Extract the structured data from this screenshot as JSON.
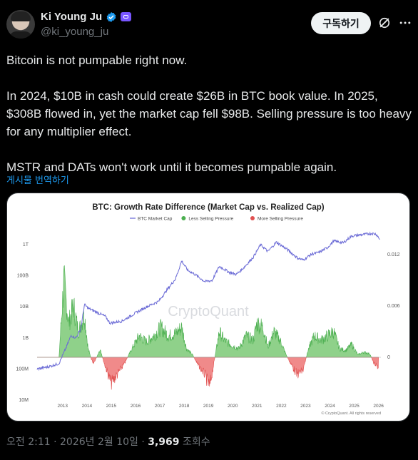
{
  "author": {
    "display_name": "Ki Young Ju",
    "handle": "@ki_young_ju"
  },
  "header": {
    "subscribe_label": "구독하기"
  },
  "icons": {
    "verified": "verified-badge-icon",
    "affiliate": "affiliate-badge-icon",
    "grok": "grok-icon",
    "more": "more-icon"
  },
  "tweet": {
    "line1": "Bitcoin is not pumpable right now.",
    "line2": "In 2024, $10B in cash could create $26B in BTC book value. In 2025, $308B flowed in, yet the market cap fell $98B. Selling pressure is too heavy for any multiplier effect.",
    "line3": "MSTR and DATs won't work until it becomes pumpable again.",
    "translate_label": "게시물 번역하기"
  },
  "chart_data": {
    "type": "area",
    "title": "BTC: Growth Rate Difference (Market Cap vs. Realized Cap)",
    "legend": [
      "BTC Market Cap",
      "Less Selling Pressure",
      "More Selling Pressure"
    ],
    "legend_placement": "top-center",
    "watermark": "CryptoQuant",
    "source": "© CryptoQuant. All rights reserved",
    "left_axis": {
      "scale": "log",
      "ticks": [
        "10M",
        "100M",
        "1B",
        "10B",
        "100B",
        "1T"
      ]
    },
    "right_axis": {
      "ticks": [
        "0",
        "0.006",
        "0.012"
      ]
    },
    "x_ticks": [
      "2013",
      "2014",
      "2015",
      "2016",
      "2017",
      "2018",
      "2019",
      "2020",
      "2021",
      "2022",
      "2023",
      "2024",
      "2025",
      "2026"
    ],
    "market_cap_usd": [
      [
        2012.0,
        0.1
      ],
      [
        2012.5,
        0.12
      ],
      [
        2012.9,
        0.15
      ],
      [
        2013.2,
        0.5
      ],
      [
        2013.4,
        1.2
      ],
      [
        2013.6,
        1.0
      ],
      [
        2013.8,
        2.0
      ],
      [
        2013.95,
        12
      ],
      [
        2014.1,
        9
      ],
      [
        2014.4,
        7
      ],
      [
        2014.8,
        5
      ],
      [
        2015.0,
        3
      ],
      [
        2015.5,
        3.5
      ],
      [
        2016.0,
        6
      ],
      [
        2016.5,
        10
      ],
      [
        2017.0,
        15
      ],
      [
        2017.4,
        40
      ],
      [
        2017.7,
        80
      ],
      [
        2017.95,
        300
      ],
      [
        2018.2,
        150
      ],
      [
        2018.5,
        110
      ],
      [
        2018.9,
        65
      ],
      [
        2019.2,
        70
      ],
      [
        2019.5,
        200
      ],
      [
        2019.9,
        130
      ],
      [
        2020.2,
        110
      ],
      [
        2020.5,
        180
      ],
      [
        2020.9,
        400
      ],
      [
        2021.2,
        1000
      ],
      [
        2021.5,
        600
      ],
      [
        2021.85,
        1200
      ],
      [
        2022.3,
        700
      ],
      [
        2022.7,
        380
      ],
      [
        2022.95,
        320
      ],
      [
        2023.3,
        500
      ],
      [
        2023.6,
        560
      ],
      [
        2023.95,
        800
      ],
      [
        2024.2,
        1300
      ],
      [
        2024.6,
        1150
      ],
      [
        2024.95,
        1900
      ],
      [
        2025.4,
        2100
      ],
      [
        2025.75,
        2300
      ],
      [
        2025.95,
        2200
      ],
      [
        2026.1,
        1500
      ]
    ],
    "growth_rate_difference": [
      [
        2012.0,
        0.0
      ],
      [
        2012.5,
        0.0
      ],
      [
        2012.9,
        0.0
      ],
      [
        2013.1,
        0.009
      ],
      [
        2013.3,
        0.004
      ],
      [
        2013.5,
        0.006
      ],
      [
        2013.7,
        0.003
      ],
      [
        2013.95,
        0.005
      ],
      [
        2014.1,
        0.001
      ],
      [
        2014.3,
        -0.0008
      ],
      [
        2014.6,
        0.0008
      ],
      [
        2014.8,
        -0.001
      ],
      [
        2015.05,
        -0.003
      ],
      [
        2015.3,
        -0.002
      ],
      [
        2015.6,
        -0.0007
      ],
      [
        2015.9,
        0.001
      ],
      [
        2016.2,
        0.0025
      ],
      [
        2016.5,
        0.0018
      ],
      [
        2016.8,
        0.0025
      ],
      [
        2017.1,
        0.0035
      ],
      [
        2017.4,
        0.0025
      ],
      [
        2017.7,
        0.0028
      ],
      [
        2017.95,
        0.0035
      ],
      [
        2018.15,
        0.001
      ],
      [
        2018.4,
        0.0003
      ],
      [
        2018.6,
        -0.0008
      ],
      [
        2018.9,
        -0.002
      ],
      [
        2019.1,
        -0.0035
      ],
      [
        2019.3,
        -0.0003
      ],
      [
        2019.5,
        0.003
      ],
      [
        2019.7,
        0.002
      ],
      [
        2019.95,
        0.0015
      ],
      [
        2020.3,
        0.001
      ],
      [
        2020.6,
        0.0025
      ],
      [
        2020.9,
        0.002
      ],
      [
        2021.05,
        0.004
      ],
      [
        2021.3,
        0.0035
      ],
      [
        2021.5,
        0.0012
      ],
      [
        2021.75,
        0.003
      ],
      [
        2022.0,
        0.002
      ],
      [
        2022.25,
        0.0003
      ],
      [
        2022.45,
        -0.0008
      ],
      [
        2022.7,
        -0.002
      ],
      [
        2022.95,
        -0.0015
      ],
      [
        2023.15,
        0.0008
      ],
      [
        2023.4,
        0.0025
      ],
      [
        2023.7,
        0.002
      ],
      [
        2023.95,
        0.0025
      ],
      [
        2024.2,
        0.003
      ],
      [
        2024.45,
        0.001
      ],
      [
        2024.7,
        0.0008
      ],
      [
        2024.95,
        0.0015
      ],
      [
        2025.2,
        0.0003
      ],
      [
        2025.45,
        0.0006
      ],
      [
        2025.7,
        0.0004
      ],
      [
        2025.85,
        -0.0006
      ],
      [
        2026.05,
        -0.0012
      ]
    ]
  },
  "meta": {
    "time_date": "오전 2:11 · 2026년 2월 10일 · ",
    "views": "3,969",
    "views_label": " 조회수"
  }
}
